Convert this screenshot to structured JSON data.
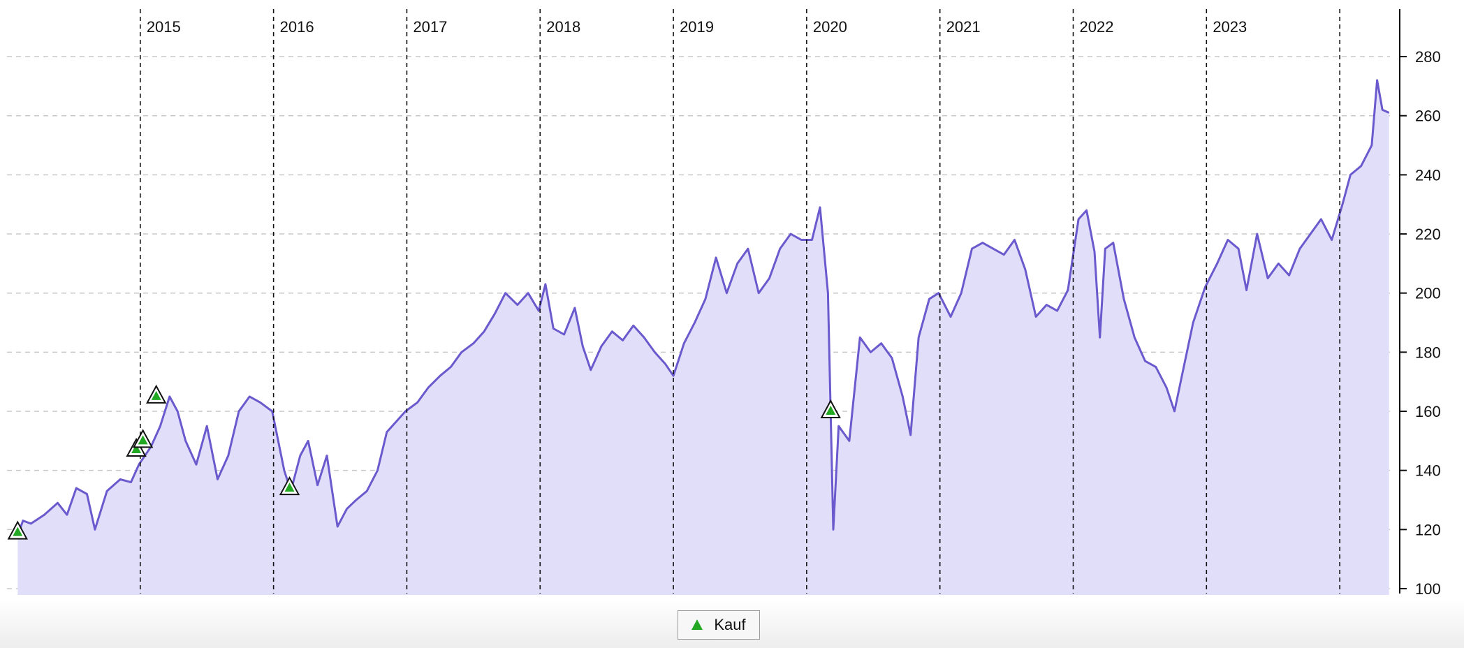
{
  "chart_data": {
    "type": "area",
    "title": "",
    "xlabel": "",
    "ylabel": "",
    "x_range": [
      2014.08,
      2024.37
    ],
    "ylim": [
      98,
      292
    ],
    "y_ticks": [
      100,
      120,
      140,
      160,
      180,
      200,
      220,
      240,
      260,
      280
    ],
    "y_axis_side": "right",
    "grid": {
      "horizontal": true,
      "vertical_dashed_year_lines": true
    },
    "year_lines": [
      2015,
      2016,
      2017,
      2018,
      2019,
      2020,
      2021,
      2022,
      2023,
      2024
    ],
    "year_labels": [
      "2015",
      "2016",
      "2017",
      "2018",
      "2019",
      "2020",
      "2021",
      "2022",
      "2023"
    ],
    "series": [
      {
        "color": "#6a5acd",
        "fill_color": "#e1defa",
        "points": [
          [
            2014.08,
            118
          ],
          [
            2014.12,
            123
          ],
          [
            2014.18,
            122
          ],
          [
            2014.28,
            125
          ],
          [
            2014.38,
            129
          ],
          [
            2014.45,
            125
          ],
          [
            2014.52,
            134
          ],
          [
            2014.6,
            132
          ],
          [
            2014.66,
            120
          ],
          [
            2014.75,
            133
          ],
          [
            2014.85,
            137
          ],
          [
            2014.93,
            136
          ],
          [
            2014.99,
            142
          ],
          [
            2015.08,
            148
          ],
          [
            2015.15,
            155
          ],
          [
            2015.22,
            165
          ],
          [
            2015.28,
            160
          ],
          [
            2015.34,
            150
          ],
          [
            2015.42,
            142
          ],
          [
            2015.5,
            155
          ],
          [
            2015.58,
            137
          ],
          [
            2015.66,
            145
          ],
          [
            2015.74,
            160
          ],
          [
            2015.82,
            165
          ],
          [
            2015.9,
            163
          ],
          [
            2015.99,
            160
          ],
          [
            2016.08,
            140
          ],
          [
            2016.13,
            133
          ],
          [
            2016.2,
            145
          ],
          [
            2016.26,
            150
          ],
          [
            2016.33,
            135
          ],
          [
            2016.4,
            145
          ],
          [
            2016.48,
            121
          ],
          [
            2016.55,
            127
          ],
          [
            2016.62,
            130
          ],
          [
            2016.7,
            133
          ],
          [
            2016.78,
            140
          ],
          [
            2016.85,
            153
          ],
          [
            2016.93,
            157
          ],
          [
            2016.99,
            160
          ],
          [
            2017.08,
            163
          ],
          [
            2017.16,
            168
          ],
          [
            2017.25,
            172
          ],
          [
            2017.33,
            175
          ],
          [
            2017.41,
            180
          ],
          [
            2017.5,
            183
          ],
          [
            2017.58,
            187
          ],
          [
            2017.66,
            193
          ],
          [
            2017.74,
            200
          ],
          [
            2017.83,
            196
          ],
          [
            2017.91,
            200
          ],
          [
            2017.99,
            194
          ],
          [
            2018.04,
            203
          ],
          [
            2018.1,
            188
          ],
          [
            2018.18,
            186
          ],
          [
            2018.26,
            195
          ],
          [
            2018.32,
            182
          ],
          [
            2018.38,
            174
          ],
          [
            2018.46,
            182
          ],
          [
            2018.54,
            187
          ],
          [
            2018.62,
            184
          ],
          [
            2018.7,
            189
          ],
          [
            2018.78,
            185
          ],
          [
            2018.86,
            180
          ],
          [
            2018.94,
            176
          ],
          [
            2019.0,
            172
          ],
          [
            2019.08,
            183
          ],
          [
            2019.16,
            190
          ],
          [
            2019.24,
            198
          ],
          [
            2019.32,
            212
          ],
          [
            2019.4,
            200
          ],
          [
            2019.48,
            210
          ],
          [
            2019.56,
            215
          ],
          [
            2019.64,
            200
          ],
          [
            2019.72,
            205
          ],
          [
            2019.8,
            215
          ],
          [
            2019.88,
            220
          ],
          [
            2019.96,
            218
          ],
          [
            2020.04,
            218
          ],
          [
            2020.1,
            229
          ],
          [
            2020.16,
            200
          ],
          [
            2020.2,
            120
          ],
          [
            2020.24,
            155
          ],
          [
            2020.32,
            150
          ],
          [
            2020.4,
            185
          ],
          [
            2020.48,
            180
          ],
          [
            2020.56,
            183
          ],
          [
            2020.64,
            178
          ],
          [
            2020.72,
            165
          ],
          [
            2020.78,
            152
          ],
          [
            2020.84,
            185
          ],
          [
            2020.92,
            198
          ],
          [
            2020.99,
            200
          ],
          [
            2021.08,
            192
          ],
          [
            2021.16,
            200
          ],
          [
            2021.24,
            215
          ],
          [
            2021.32,
            217
          ],
          [
            2021.4,
            215
          ],
          [
            2021.48,
            213
          ],
          [
            2021.56,
            218
          ],
          [
            2021.64,
            208
          ],
          [
            2021.72,
            192
          ],
          [
            2021.8,
            196
          ],
          [
            2021.88,
            194
          ],
          [
            2021.96,
            201
          ],
          [
            2022.04,
            225
          ],
          [
            2022.1,
            228
          ],
          [
            2022.16,
            214
          ],
          [
            2022.2,
            185
          ],
          [
            2022.24,
            215
          ],
          [
            2022.3,
            217
          ],
          [
            2022.38,
            198
          ],
          [
            2022.46,
            185
          ],
          [
            2022.54,
            177
          ],
          [
            2022.62,
            175
          ],
          [
            2022.7,
            168
          ],
          [
            2022.76,
            160
          ],
          [
            2022.82,
            173
          ],
          [
            2022.9,
            190
          ],
          [
            2022.99,
            202
          ],
          [
            2023.08,
            210
          ],
          [
            2023.16,
            218
          ],
          [
            2023.24,
            215
          ],
          [
            2023.3,
            201
          ],
          [
            2023.38,
            220
          ],
          [
            2023.46,
            205
          ],
          [
            2023.54,
            210
          ],
          [
            2023.62,
            206
          ],
          [
            2023.7,
            215
          ],
          [
            2023.78,
            220
          ],
          [
            2023.86,
            225
          ],
          [
            2023.94,
            218
          ],
          [
            2024.02,
            230
          ],
          [
            2024.08,
            240
          ],
          [
            2024.16,
            243
          ],
          [
            2024.24,
            250
          ],
          [
            2024.28,
            272
          ],
          [
            2024.32,
            262
          ],
          [
            2024.37,
            261
          ]
        ]
      }
    ],
    "markers": {
      "label": "Kauf",
      "shape": "triangle-up",
      "color": "#22a822",
      "points": [
        [
          2014.08,
          119
        ],
        [
          2014.97,
          147
        ],
        [
          2015.02,
          150
        ],
        [
          2015.12,
          165
        ],
        [
          2016.12,
          134
        ],
        [
          2020.18,
          160
        ]
      ]
    }
  },
  "legend": {
    "items": [
      {
        "label": "Kauf",
        "marker_color": "#22a822"
      }
    ]
  }
}
